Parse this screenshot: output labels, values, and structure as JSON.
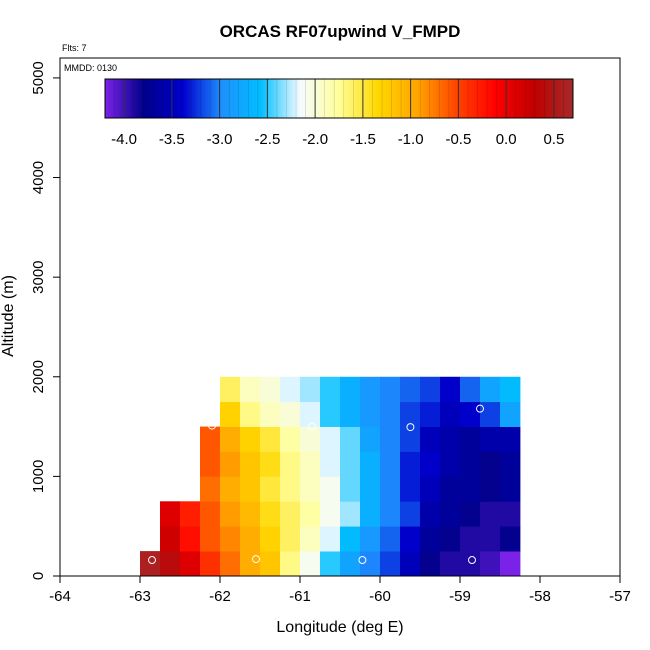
{
  "chart_data": {
    "type": "heatmap",
    "title": "ORCAS RF07upwind V_FMPD",
    "subtitle_flights": "Flts: 7",
    "subtitle_date": "MMDD: 0130",
    "xlabel": "Longitude (deg E)",
    "ylabel": "Altitude (m)",
    "xlim": [
      -64,
      -57
    ],
    "ylim": [
      0,
      5200
    ],
    "xticks": [
      "-64",
      "-63",
      "-62",
      "-61",
      "-60",
      "-59",
      "-58",
      "-57"
    ],
    "yticks": [
      "0",
      "1000",
      "2000",
      "3000",
      "4000",
      "5000"
    ],
    "colorbar": {
      "range": [
        -4.2,
        0.7
      ],
      "ticks": [
        "-4.0",
        "-3.5",
        "-3.0",
        "-2.5",
        "-2.0",
        "-1.5",
        "-1.0",
        "-0.5",
        "0.0",
        "0.5"
      ],
      "stops": [
        "#7b22e8",
        "#00008b",
        "#0000cd",
        "#1e90ff",
        "#00bfff",
        "#f5fbff",
        "#ffff99",
        "#ffd700",
        "#ffa500",
        "#ff4500",
        "#ff0000",
        "#c00000",
        "#a52a2a"
      ]
    },
    "grid": {
      "lon_start": -63.0,
      "lon_step": 0.25,
      "alt_start": 0,
      "alt_step": 250,
      "rows": [
        [
          0.6,
          0.4,
          0.1,
          -0.4,
          -0.7,
          -1.0,
          -1.2,
          -1.7,
          -2.1,
          -2.5,
          -2.8,
          -3.0,
          -3.2,
          -3.5,
          -3.8,
          -3.9,
          -3.9,
          -4.0,
          -4.2
        ],
        [
          null,
          0.2,
          -0.2,
          -0.6,
          -0.8,
          -1.0,
          -1.3,
          -1.6,
          -1.9,
          -2.2,
          -2.6,
          -2.9,
          -3.1,
          -3.4,
          -3.7,
          -3.8,
          -3.9,
          -3.9,
          -3.8
        ],
        [
          null,
          0.1,
          -0.3,
          -0.6,
          -0.9,
          -1.1,
          -1.4,
          -1.6,
          -1.8,
          -2.1,
          -2.3,
          -2.7,
          -3.0,
          -3.2,
          -3.6,
          -3.7,
          -3.8,
          -3.9,
          -3.9
        ],
        [
          null,
          null,
          null,
          -0.7,
          -1.0,
          -1.2,
          -1.5,
          -1.7,
          -1.9,
          -2.1,
          -2.4,
          -2.7,
          -3.0,
          -3.3,
          -3.5,
          -3.7,
          -3.7,
          -3.8,
          -3.7
        ],
        [
          null,
          null,
          null,
          -0.6,
          -0.9,
          -1.2,
          -1.4,
          -1.7,
          -1.9,
          -2.2,
          -2.4,
          -2.7,
          -3.0,
          -3.3,
          -3.4,
          -3.6,
          -3.7,
          -3.8,
          -3.7
        ],
        [
          null,
          null,
          null,
          -0.6,
          -1.0,
          -1.3,
          -1.5,
          -1.8,
          -2.0,
          -2.2,
          -2.4,
          -2.8,
          -3.0,
          -3.2,
          -3.5,
          -3.6,
          -3.7,
          -3.6,
          -3.6
        ],
        [
          null,
          null,
          null,
          null,
          -1.3,
          -1.7,
          -1.9,
          -2.0,
          -2.2,
          -2.5,
          -2.7,
          -2.9,
          -3.0,
          -3.2,
          -3.3,
          -3.5,
          -3.4,
          -3.2,
          -2.8
        ],
        [
          null,
          null,
          null,
          null,
          -1.6,
          -1.9,
          -2.0,
          -2.2,
          -2.3,
          -2.5,
          -2.7,
          -2.9,
          -3.0,
          -3.1,
          -3.2,
          -3.4,
          -3.1,
          -2.8,
          -2.6
        ]
      ]
    },
    "flight_points": [
      {
        "lon": -62.85,
        "alt": 160
      },
      {
        "lon": -61.55,
        "alt": 170
      },
      {
        "lon": -60.22,
        "alt": 160
      },
      {
        "lon": -58.85,
        "alt": 160
      },
      {
        "lon": -62.1,
        "alt": 1510
      },
      {
        "lon": -60.85,
        "alt": 1500
      },
      {
        "lon": -59.62,
        "alt": 1495
      },
      {
        "lon": -58.75,
        "alt": 1680
      }
    ]
  }
}
